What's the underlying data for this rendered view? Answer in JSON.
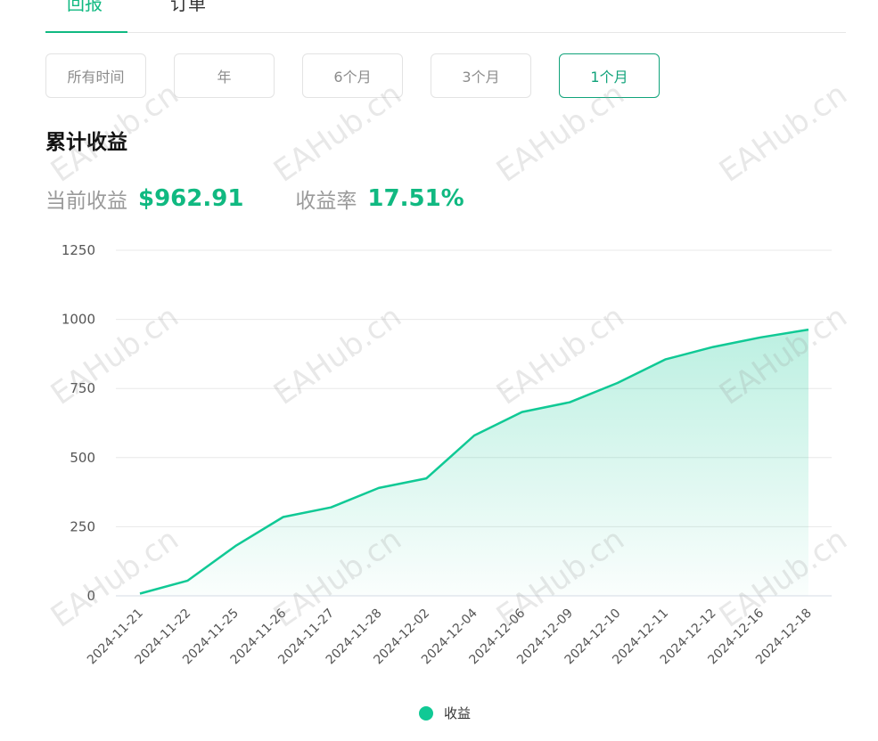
{
  "tabs": [
    {
      "label": "回报",
      "active": true
    },
    {
      "label": "订单",
      "active": false
    }
  ],
  "ranges": [
    {
      "label": "所有时间",
      "active": false
    },
    {
      "label": "年",
      "active": false
    },
    {
      "label": "6个月",
      "active": false
    },
    {
      "label": "3个月",
      "active": false
    },
    {
      "label": "1个月",
      "active": true
    }
  ],
  "summary": {
    "title": "累计收益",
    "current_label": "当前收益",
    "current_value": "$962.91",
    "rate_label": "收益率",
    "rate_value": "17.51%"
  },
  "watermark": "EAHub.cn",
  "colors": {
    "accent": "#10b981",
    "line": "#10c995"
  },
  "chart_data": {
    "type": "area",
    "categories": [
      "2024-11-21",
      "2024-11-22",
      "2024-11-25",
      "2024-11-26",
      "2024-11-27",
      "2024-11-28",
      "2024-12-02",
      "2024-12-04",
      "2024-12-06",
      "2024-12-09",
      "2024-12-10",
      "2024-12-11",
      "2024-12-12",
      "2024-12-16",
      "2024-12-18"
    ],
    "series": [
      {
        "name": "收益",
        "values": [
          8,
          55,
          180,
          285,
          320,
          390,
          425,
          580,
          665,
          700,
          770,
          855,
          900,
          935,
          962.91
        ]
      }
    ],
    "ylim": [
      0,
      1250
    ],
    "yticks": [
      0,
      250,
      500,
      750,
      1000,
      1250
    ],
    "grid": true,
    "legend": "bottom"
  }
}
